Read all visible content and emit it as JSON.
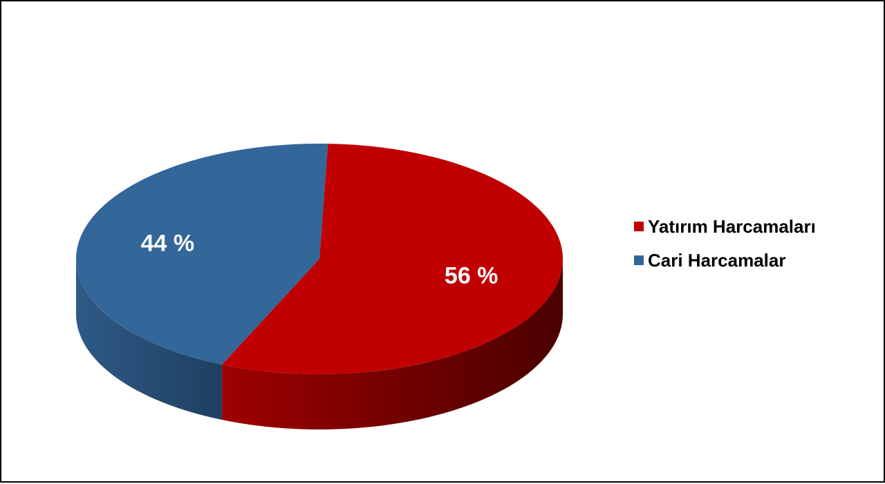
{
  "chart_data": {
    "type": "pie",
    "title": "",
    "labels": [
      "Yatırım Harcamaları",
      "Cari Harcamalar"
    ],
    "values": [
      56,
      44
    ],
    "data_labels": [
      "56 %",
      "44 %"
    ],
    "colors": [
      "#C00000",
      "#336699"
    ],
    "side_colors": [
      "#8B0000",
      "#2A527A"
    ],
    "legend_position": "right",
    "style": "3d"
  }
}
